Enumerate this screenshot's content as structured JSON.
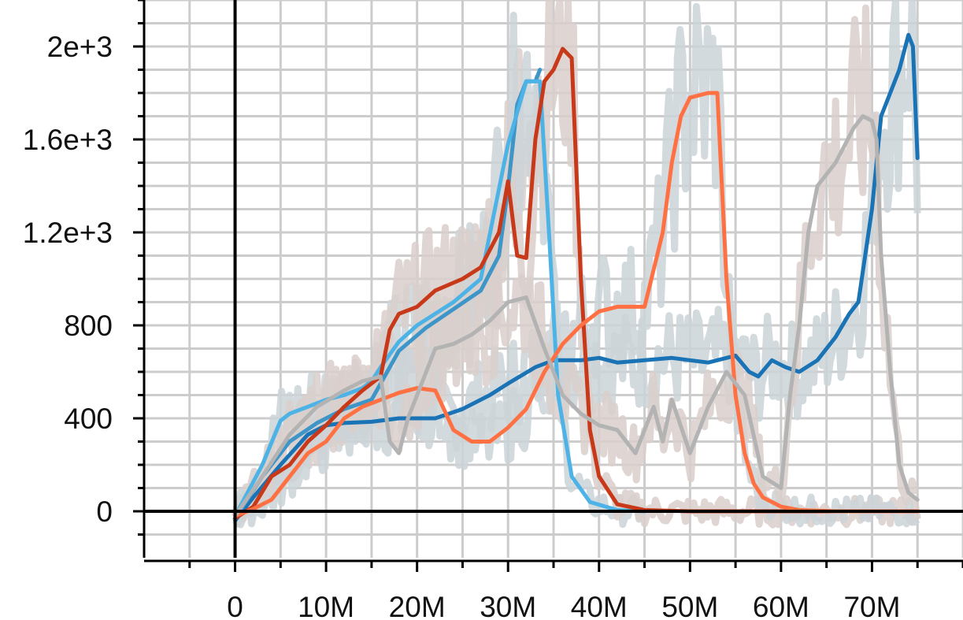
{
  "chart_data": {
    "type": "line",
    "title": "",
    "xlabel": "",
    "ylabel": "",
    "xlim": [
      -10000000,
      80000000
    ],
    "ylim": [
      -200,
      2200
    ],
    "grid": true,
    "x_tick_values": [
      0,
      10000000,
      20000000,
      30000000,
      40000000,
      50000000,
      60000000,
      70000000
    ],
    "x_tick_labels": [
      "0",
      "10M",
      "20M",
      "30M",
      "40M",
      "50M",
      "60M",
      "70M"
    ],
    "y_tick_values": [
      0,
      400,
      800,
      1200,
      1600,
      2000
    ],
    "y_tick_labels": [
      "0",
      "400",
      "800",
      "1.2e+3",
      "1.6e+3",
      "2e+3"
    ],
    "series": [
      {
        "color": "#1a73b5",
        "x": [
          0,
          2000000,
          5000000,
          8000000,
          10000000,
          12000000,
          15000000,
          18000000,
          22000000,
          25000000,
          28000000,
          30000000,
          33000000,
          35000000,
          38000000,
          40000000,
          42000000,
          45000000,
          48000000,
          50000000,
          52000000,
          55000000,
          56500000,
          57500000,
          59000000,
          60500000,
          62000000,
          64000000,
          66000000,
          67500000,
          68500000,
          70000000,
          71000000,
          72000000,
          73000000,
          74000000,
          74500000,
          75000000
        ],
        "y": [
          -40,
          60,
          200,
          330,
          370,
          380,
          385,
          400,
          400,
          440,
          500,
          550,
          620,
          650,
          650,
          660,
          640,
          650,
          660,
          650,
          640,
          670,
          600,
          580,
          650,
          620,
          600,
          650,
          750,
          850,
          900,
          1300,
          1700,
          1800,
          1900,
          2050,
          2000,
          1520
        ]
      },
      {
        "color": "#3e95c8",
        "x": [
          0,
          3000000,
          6000000,
          9000000,
          12000000,
          15000000,
          18000000,
          21000000,
          24000000,
          27000000,
          29000000,
          30000000,
          31000000,
          32000000,
          33000000,
          33500000
        ],
        "y": [
          -30,
          150,
          300,
          380,
          440,
          480,
          690,
          790,
          870,
          950,
          1100,
          1390,
          1750,
          1850,
          1850,
          1900
        ]
      },
      {
        "color": "#4db3e6",
        "x": [
          0,
          3000000,
          5000000,
          6000000,
          8000000,
          10000000,
          12000000,
          14000000,
          15000000,
          16000000,
          18000000,
          20000000,
          24000000,
          27000000,
          30000000,
          32000000,
          33500000,
          34500000,
          35500000,
          37000000,
          39000000,
          42000000,
          45000000
        ],
        "y": [
          -20,
          200,
          390,
          420,
          450,
          480,
          500,
          530,
          560,
          620,
          730,
          800,
          900,
          1000,
          1580,
          1850,
          1850,
          1200,
          500,
          150,
          40,
          5,
          0
        ]
      },
      {
        "color": "#c8391a",
        "x": [
          0,
          2000000,
          4000000,
          6000000,
          8000000,
          10000000,
          12000000,
          14000000,
          16000000,
          17000000,
          18000000,
          20000000,
          22000000,
          25000000,
          27000000,
          29000000,
          30000000,
          31000000,
          32000000,
          33000000,
          34000000,
          35000000,
          36000000,
          37000000,
          38000000,
          39000000,
          40000000,
          42000000,
          45000000,
          50000000,
          60000000,
          75000000
        ],
        "y": [
          -30,
          20,
          150,
          200,
          300,
          370,
          450,
          520,
          580,
          780,
          850,
          880,
          950,
          1000,
          1050,
          1200,
          1420,
          1100,
          1090,
          1600,
          1850,
          1900,
          1990,
          1950,
          1000,
          350,
          150,
          30,
          5,
          0,
          0,
          0
        ]
      },
      {
        "color": "#ff7043",
        "x": [
          0,
          2000000,
          4000000,
          6000000,
          8000000,
          10000000,
          12000000,
          14000000,
          16000000,
          18000000,
          20000000,
          22000000,
          24000000,
          26000000,
          28000000,
          30000000,
          32000000,
          34000000,
          36000000,
          38000000,
          40000000,
          42000000,
          45000000,
          47000000,
          48000000,
          49000000,
          50000000,
          52000000,
          53000000,
          54000000,
          55000000,
          56000000,
          57000000,
          58000000,
          60000000,
          62000000,
          66000000,
          75000000
        ],
        "y": [
          -20,
          10,
          50,
          150,
          250,
          300,
          400,
          450,
          480,
          510,
          530,
          520,
          350,
          300,
          300,
          360,
          440,
          600,
          720,
          800,
          860,
          880,
          880,
          1200,
          1500,
          1700,
          1780,
          1800,
          1800,
          1000,
          500,
          250,
          120,
          60,
          20,
          5,
          0,
          0
        ]
      },
      {
        "color": "#b3b3b3",
        "x": [
          0,
          3000000,
          6000000,
          9000000,
          12000000,
          14000000,
          16000000,
          17000000,
          18000000,
          19000000,
          20000000,
          22000000,
          24000000,
          26000000,
          28000000,
          30000000,
          32000000,
          34000000,
          36000000,
          38000000,
          40000000,
          42000000,
          44000000,
          46000000,
          47000000,
          48000000,
          50000000,
          52000000,
          54000000,
          56000000,
          58000000,
          60000000,
          61000000,
          62000000,
          63000000,
          64000000,
          66000000,
          68000000,
          69000000,
          70000000,
          70500000,
          71000000,
          72000000,
          73000000,
          74000000,
          75000000
        ],
        "y": [
          -20,
          150,
          330,
          450,
          520,
          560,
          580,
          300,
          250,
          400,
          500,
          700,
          720,
          760,
          820,
          900,
          920,
          700,
          500,
          420,
          370,
          350,
          250,
          450,
          300,
          480,
          250,
          450,
          600,
          500,
          150,
          100,
          500,
          800,
          1200,
          1400,
          1500,
          1650,
          1700,
          1680,
          1600,
          1100,
          600,
          200,
          80,
          50
        ]
      }
    ]
  }
}
